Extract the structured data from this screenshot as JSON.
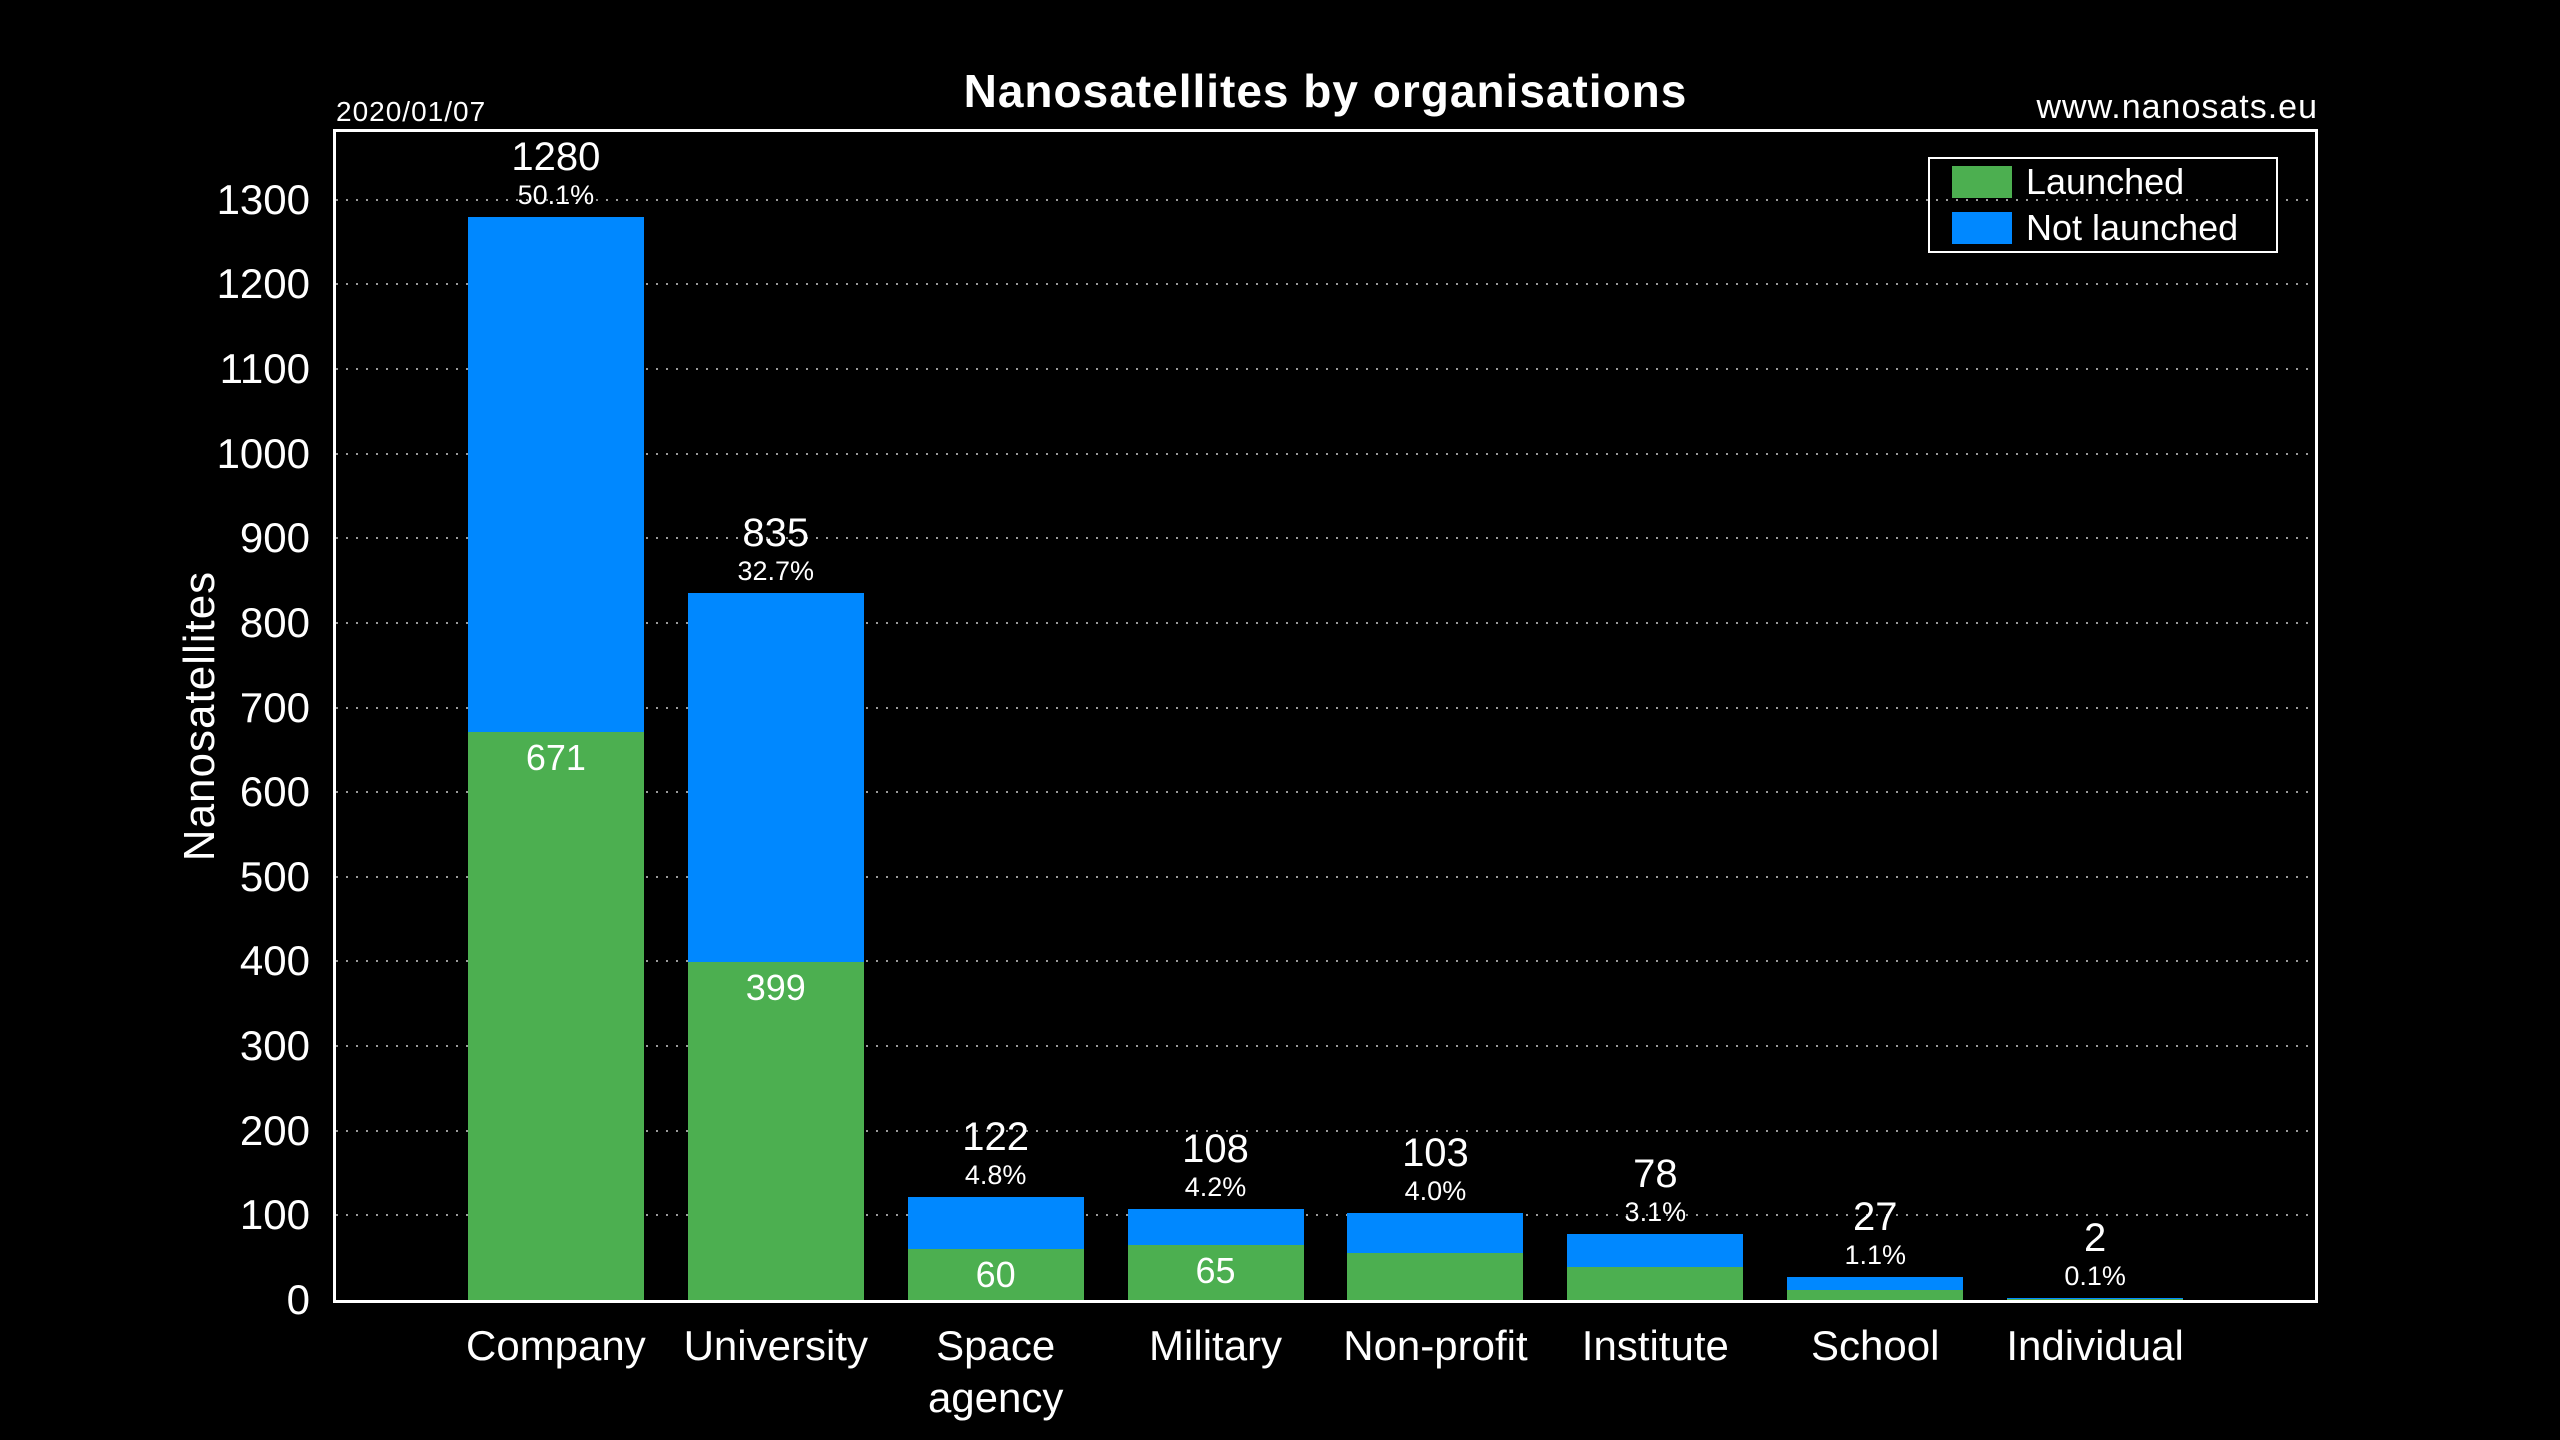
{
  "meta": {
    "date_label": "2020/01/07",
    "website": "www.nanosats.eu"
  },
  "header": {
    "title": "Nanosatellites by organisations"
  },
  "colors": {
    "background": "#000000",
    "text": "#ffffff",
    "launched": "#4caf50",
    "not_launched": "#0088ff",
    "grid": "rgba(255,255,255,0.6)"
  },
  "chart_data": {
    "type": "bar",
    "stacked": true,
    "title": "Nanosatellites by organisations",
    "xlabel": "",
    "ylabel": "Nanosatellites",
    "ylim": [
      0,
      1380
    ],
    "y_ticks": [
      0,
      100,
      200,
      300,
      400,
      500,
      600,
      700,
      800,
      900,
      1000,
      1100,
      1200,
      1300
    ],
    "grid": "horizontal dotted lines every 100, black background",
    "legend_position": "top-right inside plot",
    "categories": [
      "Company",
      "University",
      "Space agency",
      "Military",
      "Non-profit",
      "Institute",
      "School",
      "Individual"
    ],
    "series": [
      {
        "name": "Launched",
        "color": "#4caf50",
        "values": [
          671,
          399,
          60,
          65,
          56,
          39,
          12,
          1
        ],
        "value_labels": [
          "671",
          "399",
          "60",
          "65",
          "",
          "",
          "",
          ""
        ]
      },
      {
        "name": "Not launched",
        "color": "#0088ff",
        "values": [
          609,
          436,
          62,
          43,
          47,
          39,
          15,
          1
        ],
        "value_labels": [
          "",
          "",
          "",
          "",
          "",
          "",
          "",
          ""
        ]
      }
    ],
    "totals": [
      1280,
      835,
      122,
      108,
      103,
      78,
      27,
      2
    ],
    "total_percent_labels": [
      "50.1%",
      "32.7%",
      "4.8%",
      "4.2%",
      "4.0%",
      "3.1%",
      "1.1%",
      "0.1%"
    ]
  }
}
